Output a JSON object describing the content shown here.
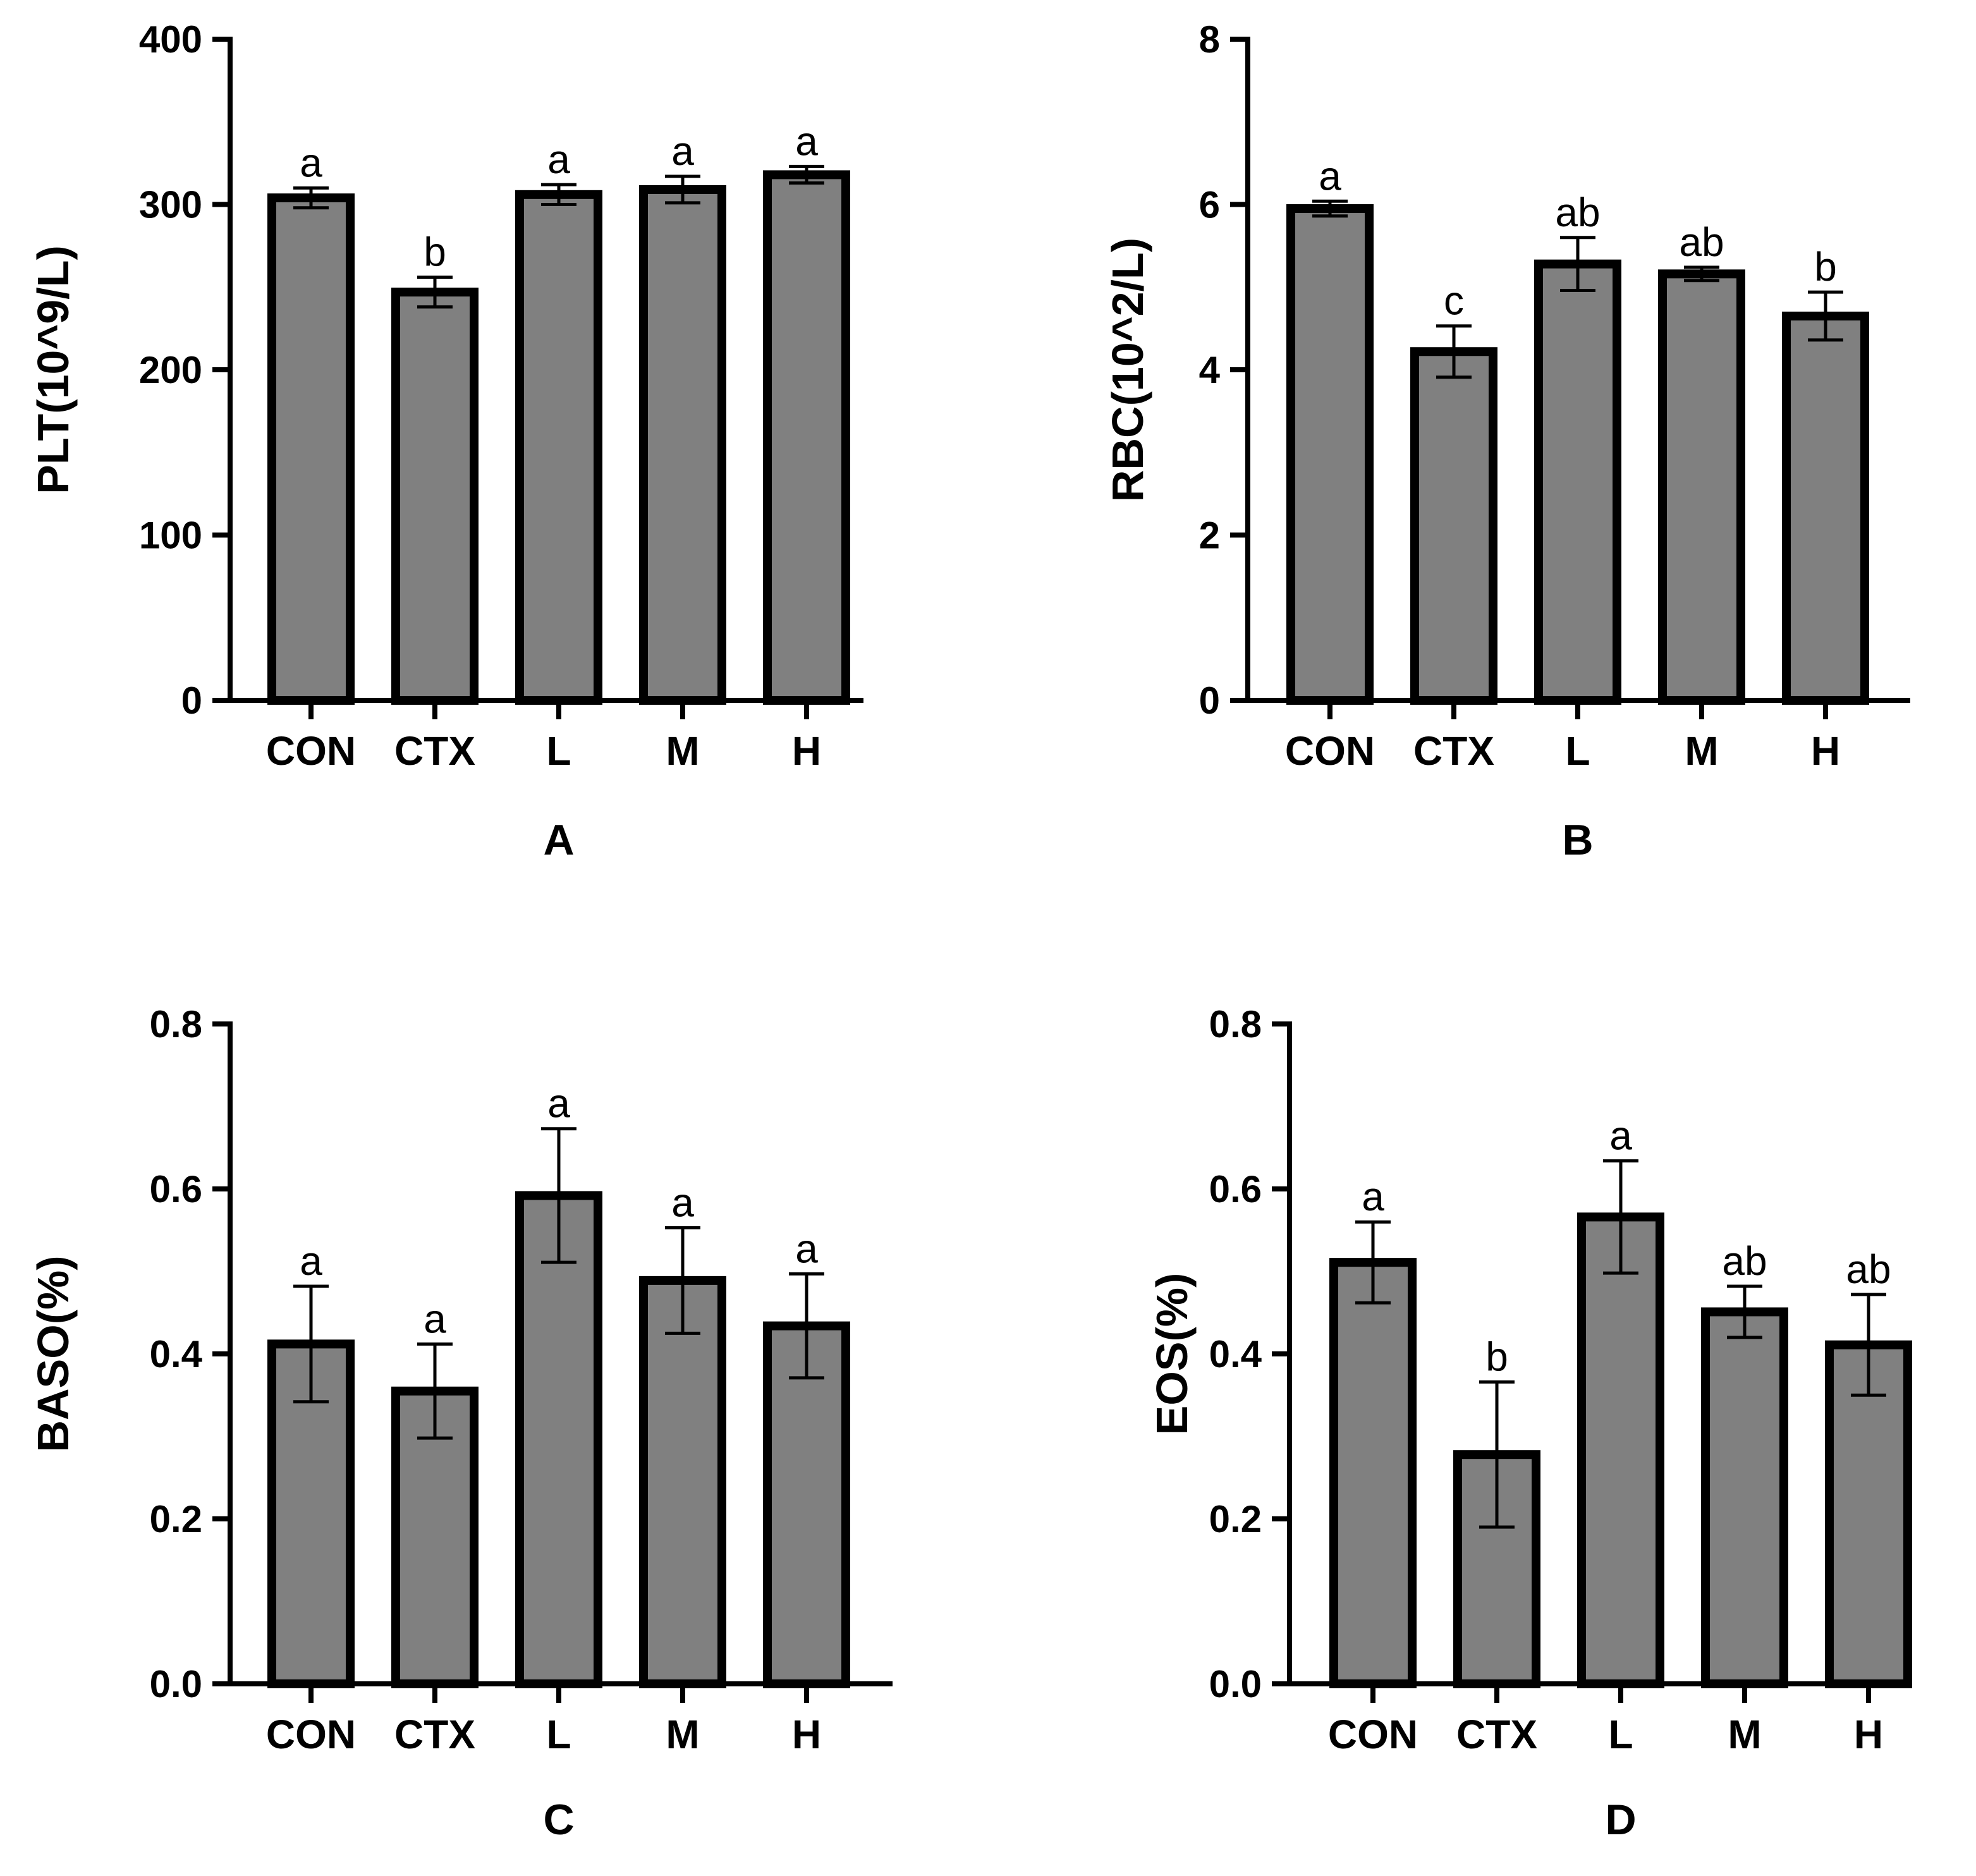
{
  "chart_data": [
    {
      "type": "bar",
      "panel": "A",
      "ylabel": "PLT(10^9/L)",
      "categories": [
        "CON",
        "CTX",
        "L",
        "M",
        "H"
      ],
      "values": [
        304,
        247,
        306,
        309,
        318
      ],
      "errors": [
        6,
        9,
        6,
        8,
        5
      ],
      "significance": [
        "a",
        "b",
        "a",
        "a",
        "a"
      ],
      "ylim": [
        0,
        400
      ],
      "yticks": [
        0,
        100,
        200,
        300,
        400
      ],
      "ytick_labels": [
        "0",
        "100",
        "200",
        "300",
        "400"
      ],
      "bar_color": "#808080"
    },
    {
      "type": "bar",
      "panel": "B",
      "ylabel": "RBC(10^2/L)",
      "categories": [
        "CON",
        "CTX",
        "L",
        "M",
        "H"
      ],
      "values": [
        5.95,
        4.22,
        5.28,
        5.16,
        4.65
      ],
      "errors": [
        0.09,
        0.31,
        0.32,
        0.08,
        0.29
      ],
      "significance": [
        "a",
        "c",
        "ab",
        "ab",
        "b"
      ],
      "ylim": [
        0,
        8
      ],
      "yticks": [
        0,
        2,
        4,
        6,
        8
      ],
      "ytick_labels": [
        "0",
        "2",
        "4",
        "6",
        "8"
      ],
      "bar_color": "#808080"
    },
    {
      "type": "bar",
      "panel": "C",
      "ylabel": "BASO(%)",
      "categories": [
        "CON",
        "CTX",
        "L",
        "M",
        "H"
      ],
      "values": [
        0.412,
        0.355,
        0.592,
        0.489,
        0.434
      ],
      "errors": [
        0.07,
        0.057,
        0.081,
        0.064,
        0.063
      ],
      "significance": [
        "a",
        "a",
        "a",
        "a",
        "a"
      ],
      "ylim": [
        0,
        0.8
      ],
      "yticks": [
        0,
        0.2,
        0.4,
        0.6,
        0.8
      ],
      "ytick_labels": [
        "0.0",
        "0.2",
        "0.4",
        "0.6",
        "0.8"
      ],
      "bar_color": "#808080"
    },
    {
      "type": "bar",
      "panel": "D",
      "ylabel": "EOS(%)",
      "categories": [
        "CON",
        "CTX",
        "L",
        "M",
        "H"
      ],
      "values": [
        0.511,
        0.278,
        0.566,
        0.451,
        0.411
      ],
      "errors": [
        0.049,
        0.088,
        0.068,
        0.031,
        0.061
      ],
      "significance": [
        "a",
        "b",
        "a",
        "ab",
        "ab"
      ],
      "ylim": [
        0,
        0.8
      ],
      "yticks": [
        0,
        0.2,
        0.4,
        0.6,
        0.8
      ],
      "ytick_labels": [
        "0.0",
        "0.2",
        "0.4",
        "0.6",
        "0.8"
      ],
      "bar_color": "#808080"
    }
  ]
}
